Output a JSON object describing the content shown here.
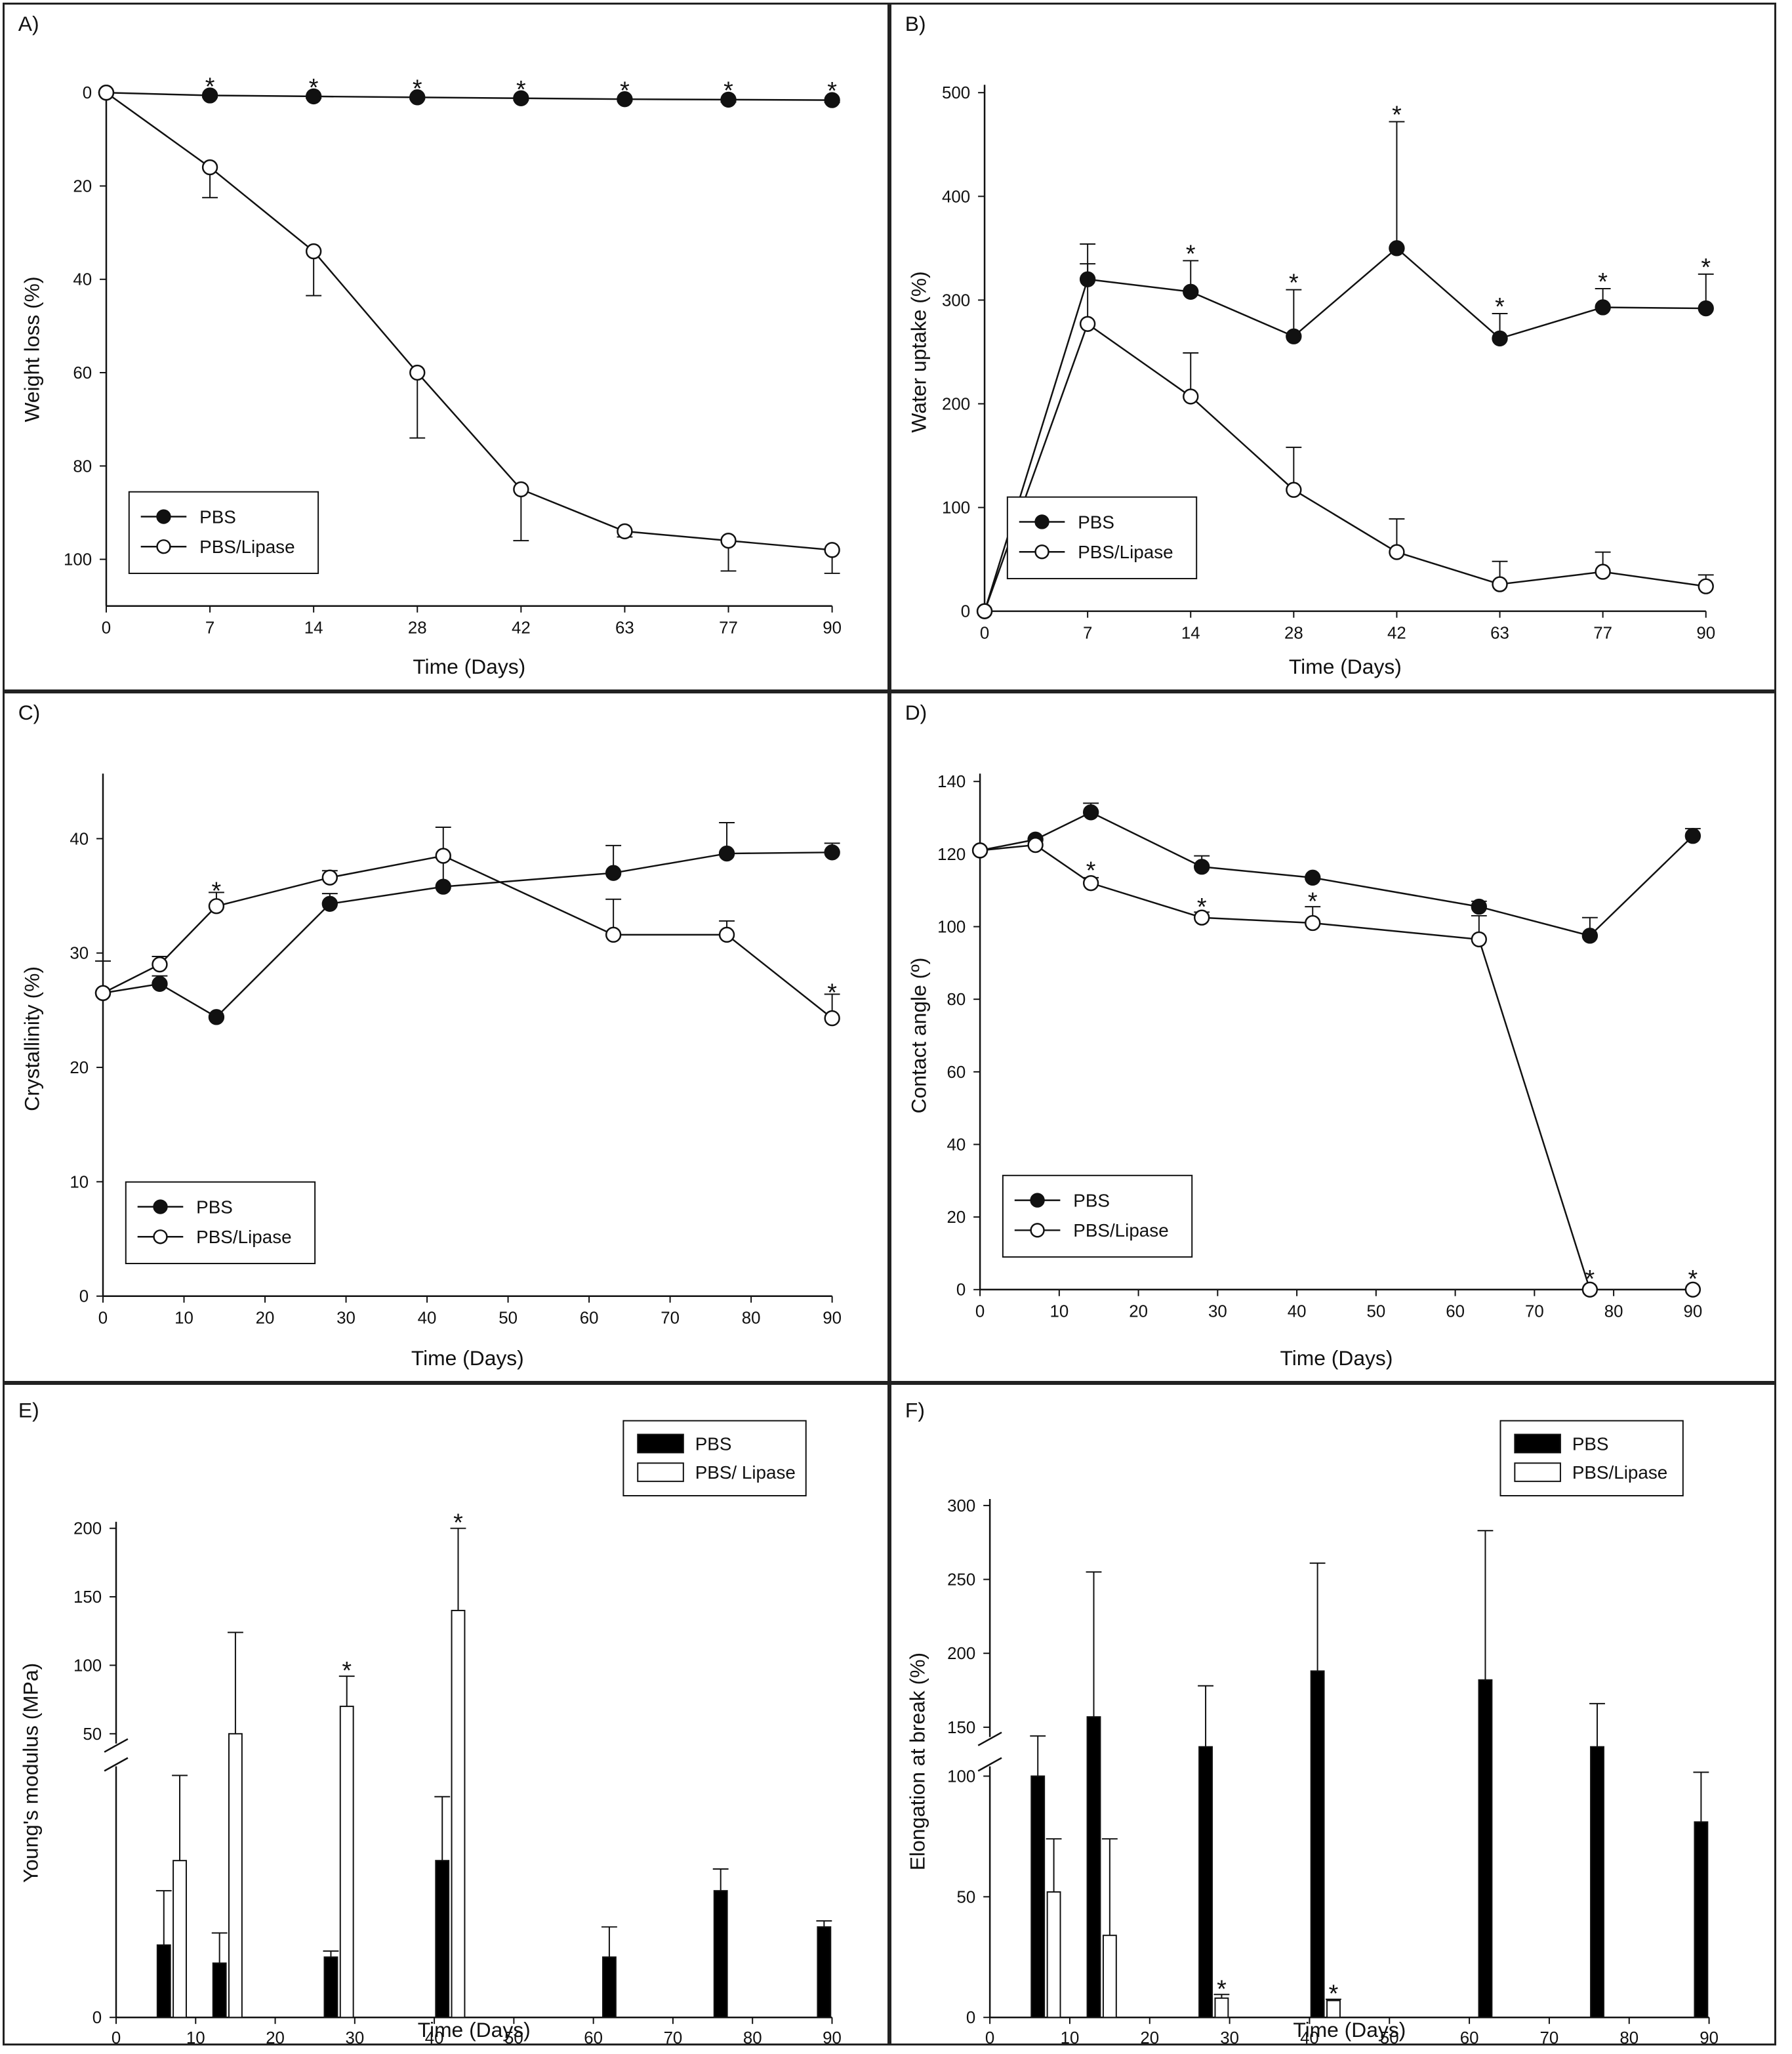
{
  "chart_data": [
    {
      "type": "line",
      "panel_label": "A)",
      "xlabel": "Time (Days)",
      "ylabel": "Weight loss (%)",
      "x_ticks": [
        "0",
        "7",
        "14",
        "28",
        "42",
        "63",
        "77",
        "90"
      ],
      "y_ticks": [
        0,
        20,
        40,
        60,
        80,
        100
      ],
      "ylim": [
        110,
        0
      ],
      "y_inverted": true,
      "legend": "bottom-left",
      "series": [
        {
          "name": "PBS",
          "marker": "filled",
          "values": [
            0,
            0.6,
            0.8,
            1.0,
            1.2,
            1.4,
            1.5,
            1.6
          ],
          "errors": [
            0,
            0.4,
            0.4,
            0.4,
            0.4,
            0.4,
            0.5,
            0.5
          ]
        },
        {
          "name": "PBS/Lipase",
          "marker": "open",
          "values": [
            0,
            16,
            34,
            60,
            85,
            94,
            96,
            98
          ],
          "errors": [
            0,
            6.5,
            9.5,
            14,
            11,
            1.2,
            6.5,
            5
          ]
        }
      ],
      "significance": [
        1,
        2,
        3,
        4,
        5,
        6,
        7
      ]
    },
    {
      "type": "line",
      "panel_label": "B)",
      "xlabel": "Time (Days)",
      "ylabel": "Water uptake (%)",
      "x_ticks": [
        "0",
        "7",
        "14",
        "28",
        "42",
        "63",
        "77",
        "90"
      ],
      "y_ticks": [
        0,
        100,
        200,
        300,
        400,
        500
      ],
      "ylim": [
        0,
        500
      ],
      "legend": "bottom-left",
      "series": [
        {
          "name": "PBS",
          "marker": "filled",
          "values": [
            0,
            320,
            308,
            265,
            350,
            263,
            293,
            292
          ],
          "errors": [
            0,
            34,
            30,
            45,
            122,
            24,
            18,
            33
          ]
        },
        {
          "name": "PBS/Lipase",
          "marker": "open",
          "values": [
            0,
            277,
            207,
            117,
            57,
            26,
            38,
            24
          ],
          "errors": [
            0,
            58,
            42,
            41,
            32,
            22,
            19,
            11
          ]
        }
      ],
      "significance": [
        2,
        3,
        4,
        5,
        6,
        7
      ]
    },
    {
      "type": "line",
      "panel_label": "C)",
      "xlabel": "Time (Days)",
      "ylabel": "Crystallinity (%)",
      "x_ticks": [
        "0",
        "10",
        "20",
        "30",
        "40",
        "50",
        "60",
        "70",
        "80",
        "90"
      ],
      "xlim": [
        0,
        90
      ],
      "y_ticks": [
        0,
        10,
        20,
        30,
        40
      ],
      "ylim": [
        0,
        45
      ],
      "legend": "bottom-left",
      "series": [
        {
          "name": "PBS",
          "marker": "filled",
          "x": [
            0,
            7,
            14,
            28,
            42,
            63,
            77,
            90
          ],
          "values": [
            26.5,
            27.3,
            24.4,
            34.3,
            35.8,
            37,
            38.7,
            38.8
          ],
          "errors": [
            2.8,
            0.7,
            0,
            0.9,
            2.5,
            2.4,
            2.7,
            0.8
          ]
        },
        {
          "name": "PBS/Lipase",
          "marker": "open",
          "x": [
            0,
            7,
            14,
            28,
            42,
            63,
            77,
            90
          ],
          "values": [
            26.5,
            29,
            34.1,
            36.6,
            38.5,
            31.6,
            31.6,
            24.3
          ],
          "errors": [
            2.8,
            0.7,
            1.2,
            0.6,
            2.5,
            3.1,
            1.2,
            2.1
          ]
        }
      ],
      "significance": [
        {
          "x": 14,
          "y": 35.3
        },
        {
          "x": 90,
          "y": 26.4
        }
      ]
    },
    {
      "type": "line",
      "panel_label": "D)",
      "xlabel": "Time (Days)",
      "ylabel": "Contact angle (º)",
      "x_ticks": [
        "0",
        "10",
        "20",
        "30",
        "40",
        "50",
        "60",
        "70",
        "80",
        "90"
      ],
      "xlim": [
        0,
        90
      ],
      "y_ticks": [
        0,
        20,
        40,
        60,
        80,
        100,
        120,
        140
      ],
      "ylim": [
        0,
        140
      ],
      "legend": "bottom-left",
      "series": [
        {
          "name": "PBS",
          "marker": "filled",
          "x": [
            0,
            7,
            14,
            28,
            42,
            63,
            77,
            90
          ],
          "values": [
            121,
            124,
            131.5,
            116.5,
            113.5,
            105.5,
            97.5,
            125
          ],
          "errors": [
            0,
            0,
            2.5,
            3,
            0,
            1.5,
            5,
            2
          ]
        },
        {
          "name": "PBS/Lipase",
          "marker": "open",
          "x": [
            0,
            7,
            14,
            28,
            42,
            63,
            77,
            90
          ],
          "values": [
            121,
            122.5,
            112,
            102.5,
            101,
            96.5,
            0,
            0
          ],
          "errors": [
            0,
            0,
            1.5,
            1.5,
            4.5,
            6.5,
            0,
            0
          ]
        }
      ],
      "significance": [
        {
          "x": 14,
          "y": 115
        },
        {
          "x": 28,
          "y": 105
        },
        {
          "x": 42,
          "y": 106.5
        },
        {
          "x": 77,
          "y": 2.5
        },
        {
          "x": 90,
          "y": 2.5
        }
      ]
    },
    {
      "type": "bar",
      "panel_label": "E)",
      "xlabel": "Time (Days)",
      "ylabel": "Young's modulus (MPa)",
      "x_ticks": [
        "0",
        "10",
        "20",
        "30",
        "40",
        "50",
        "60",
        "70",
        "80",
        "90"
      ],
      "xlim": [
        0,
        90
      ],
      "y_ticks_upper": [
        "50",
        "100",
        "150",
        "200"
      ],
      "y_ticks_lower": [
        "0"
      ],
      "broken_axis": true,
      "legend": "top-right",
      "series": [
        {
          "name": "PBS",
          "fill": "solid",
          "x": [
            6,
            13,
            27,
            41,
            62,
            76,
            89
          ],
          "values": [
            6,
            4.5,
            5,
            13,
            5,
            10.5,
            7.5
          ],
          "errors": [
            4.5,
            2.5,
            0.5,
            5.3,
            2.5,
            1.8,
            0.5
          ]
        },
        {
          "name": "PBS/ Lipase",
          "fill": "open",
          "x": [
            8,
            15,
            29,
            43
          ],
          "values": [
            13,
            50,
            70,
            140
          ],
          "errors": [
            7.5,
            74,
            22,
            60
          ]
        }
      ],
      "significance": [
        29,
        43
      ]
    },
    {
      "type": "bar",
      "panel_label": "F)",
      "xlabel": "Time (Days)",
      "ylabel": "Elongation at break (%)",
      "x_ticks": [
        "0",
        "10",
        "20",
        "30",
        "40",
        "50",
        "60",
        "70",
        "80",
        "90"
      ],
      "xlim": [
        0,
        90
      ],
      "y_ticks_upper": [
        "150",
        "200",
        "250",
        "300"
      ],
      "y_ticks_lower": [
        "0",
        "50",
        "100"
      ],
      "broken_axis": true,
      "legend": "top-right",
      "series": [
        {
          "name": "PBS",
          "fill": "solid",
          "x": [
            6,
            13,
            27,
            41,
            62,
            76,
            89
          ],
          "values": [
            100,
            157,
            130,
            188,
            182,
            130,
            81
          ],
          "errors": [
            41,
            98,
            48,
            73,
            101,
            36,
            23
          ]
        },
        {
          "name": "PBS/Lipase",
          "fill": "open",
          "x": [
            8,
            15,
            29,
            43
          ],
          "values": [
            52,
            34,
            8,
            7
          ],
          "errors": [
            22,
            40,
            1.5,
            0.5
          ]
        }
      ],
      "significance": [
        29,
        43
      ]
    }
  ]
}
